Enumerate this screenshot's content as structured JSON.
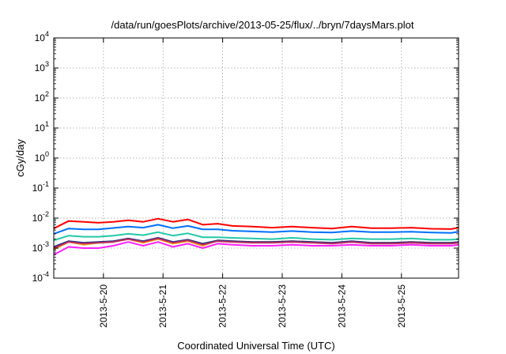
{
  "chart_data": {
    "type": "line",
    "title": "/data/run/goesPlots/archive/2013-05-25/flux/../bryn/7daysMars.plot",
    "xlabel": "Coordinated Universal Time (UTC)",
    "ylabel": "cGy/day",
    "y_scale": "log",
    "ylim_exp": [
      -4,
      4
    ],
    "y_ticks": [
      {
        "base": "10",
        "exp": "4"
      },
      {
        "base": "10",
        "exp": "3"
      },
      {
        "base": "10",
        "exp": "2"
      },
      {
        "base": "10",
        "exp": "1"
      },
      {
        "base": "10",
        "exp": "0"
      },
      {
        "base": "10",
        "exp": "-1"
      },
      {
        "base": "10",
        "exp": "-2"
      },
      {
        "base": "10",
        "exp": "-3"
      },
      {
        "base": "10",
        "exp": "-4"
      }
    ],
    "x_range": [
      "2013-05-19 04:00",
      "2013-05-25 23:00"
    ],
    "x_ticks": [
      "2013-5-20",
      "2013-5-21",
      "2013-5-22",
      "2013-5-23",
      "2013-5-24",
      "2013-5-25"
    ],
    "grid": true,
    "legend": "none",
    "x_times": [
      "05-19 04:00",
      "05-19 10:00",
      "05-19 16:00",
      "05-19 22:00",
      "05-20 04:00",
      "05-20 10:00",
      "05-20 16:00",
      "05-20 22:00",
      "05-21 04:00",
      "05-21 10:00",
      "05-21 16:00",
      "05-21 22:00",
      "05-22 04:00",
      "05-22 12:00",
      "05-22 20:00",
      "05-23 04:00",
      "05-23 12:00",
      "05-23 20:00",
      "05-24 04:00",
      "05-24 12:00",
      "05-24 20:00",
      "05-25 04:00",
      "05-25 12:00",
      "05-25 20:00",
      "05-25 23:00"
    ],
    "series": [
      {
        "color": "#ff0000",
        "values": [
          0.0045,
          0.008,
          0.0075,
          0.007,
          0.0075,
          0.0085,
          0.0075,
          0.0095,
          0.0075,
          0.009,
          0.006,
          0.0065,
          0.0055,
          0.0052,
          0.0048,
          0.0052,
          0.0048,
          0.0045,
          0.0052,
          0.0046,
          0.0046,
          0.0048,
          0.0044,
          0.0043,
          0.0048
        ]
      },
      {
        "color": "#0070ff",
        "values": [
          0.003,
          0.0045,
          0.0042,
          0.0042,
          0.0047,
          0.0052,
          0.0048,
          0.006,
          0.0046,
          0.0055,
          0.0042,
          0.0042,
          0.0038,
          0.0036,
          0.0034,
          0.0037,
          0.0034,
          0.0033,
          0.0037,
          0.0034,
          0.0034,
          0.0035,
          0.0033,
          0.0032,
          0.0035
        ]
      },
      {
        "color": "#22c8a8",
        "values": [
          0.0018,
          0.0026,
          0.0024,
          0.0024,
          0.0026,
          0.003,
          0.0027,
          0.0034,
          0.0026,
          0.0031,
          0.0023,
          0.0023,
          0.0022,
          0.0021,
          0.002,
          0.0022,
          0.002,
          0.0019,
          0.0021,
          0.002,
          0.002,
          0.0021,
          0.0019,
          0.0019,
          0.002
        ]
      },
      {
        "color": "#ffa500",
        "values": [
          0.0009,
          0.0016,
          0.0013,
          0.0015,
          0.0016,
          0.002,
          0.0015,
          0.002,
          0.0014,
          0.0017,
          0.0012,
          0.0018,
          0.0017,
          0.0016,
          0.0016,
          0.0017,
          0.0016,
          0.0015,
          0.0016,
          0.0015,
          0.0015,
          0.0016,
          0.0015,
          0.0015,
          0.0016
        ]
      },
      {
        "color": "#1a2a80",
        "values": [
          0.0011,
          0.0017,
          0.0015,
          0.0016,
          0.0017,
          0.0021,
          0.0017,
          0.0022,
          0.0016,
          0.0019,
          0.0014,
          0.0018,
          0.0017,
          0.0016,
          0.0016,
          0.0017,
          0.0016,
          0.0015,
          0.0017,
          0.0015,
          0.0015,
          0.0016,
          0.0015,
          0.0015,
          0.0016
        ]
      },
      {
        "color": "#c03060",
        "values": [
          0.001,
          0.0016,
          0.0014,
          0.0015,
          0.0016,
          0.002,
          0.0016,
          0.0021,
          0.0015,
          0.0018,
          0.0013,
          0.0017,
          0.0016,
          0.0015,
          0.0015,
          0.0016,
          0.0015,
          0.0014,
          0.0016,
          0.0014,
          0.0014,
          0.0015,
          0.0014,
          0.0014,
          0.0015
        ]
      },
      {
        "color": "#ff20ff",
        "values": [
          0.0006,
          0.0011,
          0.001,
          0.001,
          0.0012,
          0.0016,
          0.0012,
          0.0016,
          0.0011,
          0.0014,
          0.001,
          0.0014,
          0.0013,
          0.0012,
          0.0012,
          0.0013,
          0.0012,
          0.0012,
          0.0013,
          0.0012,
          0.0012,
          0.0013,
          0.0012,
          0.0012,
          0.0013
        ]
      }
    ]
  }
}
